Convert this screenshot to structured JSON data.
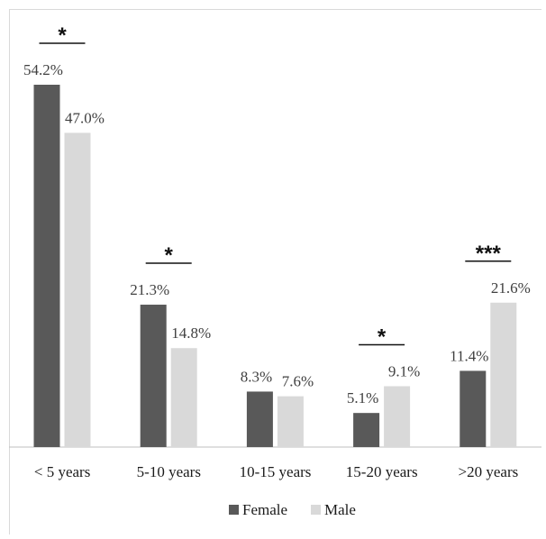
{
  "chart_data": {
    "type": "bar",
    "categories": [
      "< 5 years",
      "5-10 years",
      "10-15 years",
      "15-20 years",
      ">20 years"
    ],
    "series": [
      {
        "name": "Female",
        "values": [
          54.2,
          21.3,
          8.3,
          5.1,
          11.4
        ],
        "labels": [
          "54.2%",
          "21.3%",
          "8.3%",
          "5.1%",
          "11.4%"
        ],
        "color": "#595959"
      },
      {
        "name": "Male",
        "values": [
          47.0,
          14.8,
          7.6,
          9.1,
          21.6
        ],
        "labels": [
          "47.0%",
          "14.8%",
          "7.6%",
          "9.1%",
          "21.6%"
        ],
        "color": "#d9d9d9"
      }
    ],
    "ylim": [
      0,
      54.2
    ],
    "significance": [
      "*",
      "*",
      "",
      "*",
      "***"
    ],
    "legend_position": "bottom",
    "grid": false,
    "title": "",
    "xlabel": "",
    "ylabel": ""
  }
}
